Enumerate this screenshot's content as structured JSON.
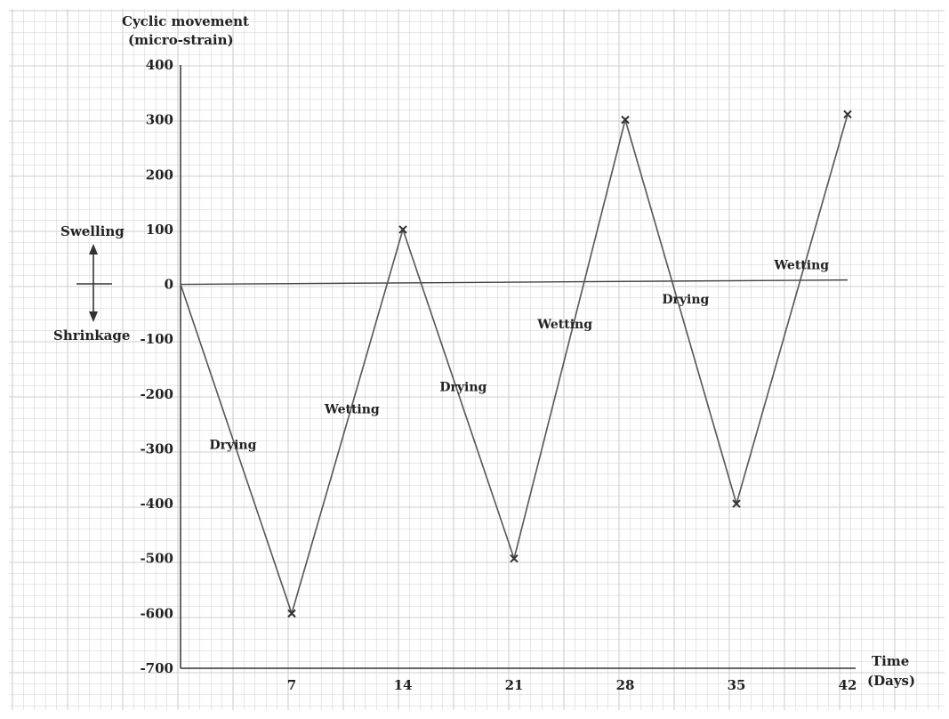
{
  "chart_data": {
    "type": "line",
    "ylabel_line1": "Cyclic movement",
    "ylabel_line2": "(micro-strain)",
    "xlabel_line1": "Time",
    "xlabel_line2": "(Days)",
    "x": [
      0,
      7,
      14,
      21,
      28,
      35,
      42
    ],
    "y": [
      0,
      -600,
      100,
      -500,
      300,
      -400,
      310
    ],
    "x_ticks": [
      "7",
      "14",
      "21",
      "28",
      "35",
      "42"
    ],
    "x_tick_values": [
      7,
      14,
      21,
      28,
      35,
      42
    ],
    "y_ticks": [
      "400",
      "300",
      "200",
      "100",
      "0",
      "-100",
      "-200",
      "-300",
      "-400",
      "-500",
      "-600",
      "-700"
    ],
    "y_tick_values": [
      400,
      300,
      200,
      100,
      0,
      -100,
      -200,
      -300,
      -400,
      -500,
      -600,
      -700
    ],
    "ylim": [
      -700,
      400
    ],
    "xlim": [
      0,
      42
    ],
    "grid": true,
    "background": "graph paper",
    "line_color": "#555555",
    "grid_color": "#cfcfcf",
    "swelling_label": "Swelling",
    "shrinkage_label": "Shrinkage",
    "phase_labels": [
      {
        "text": "Drying",
        "x": 3.3,
        "y": -300
      },
      {
        "text": "Wetting",
        "x": 10.8,
        "y": -235
      },
      {
        "text": "Drying",
        "x": 17.8,
        "y": -195
      },
      {
        "text": "Wetting",
        "x": 24.2,
        "y": -80
      },
      {
        "text": "Drying",
        "x": 31.8,
        "y": -35
      },
      {
        "text": "Wetting",
        "x": 39.1,
        "y": 28
      }
    ]
  }
}
